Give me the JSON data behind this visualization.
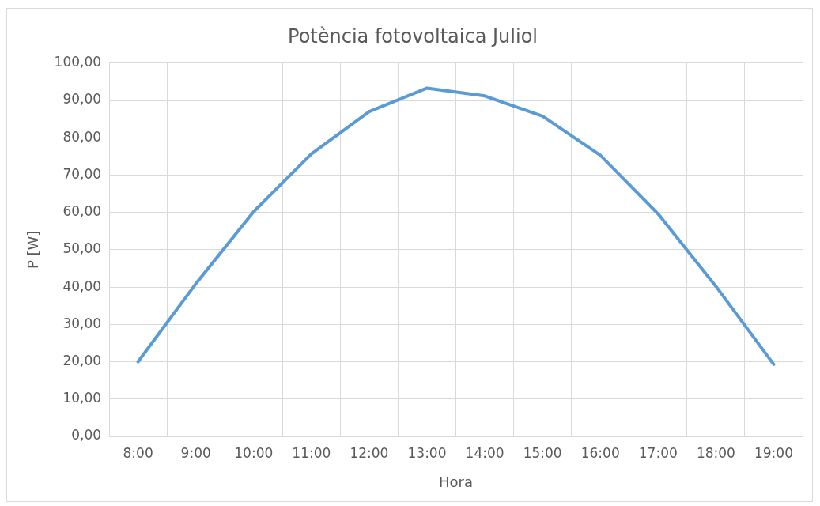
{
  "chart_data": {
    "type": "line",
    "title": "Potència fotovoltaica Juliol",
    "xlabel": "Hora",
    "ylabel": "P [W]",
    "categories": [
      "8:00",
      "9:00",
      "10:00",
      "11:00",
      "12:00",
      "13:00",
      "14:00",
      "15:00",
      "16:00",
      "17:00",
      "18:00",
      "19:00"
    ],
    "series": [
      {
        "color": "#5b9bd5",
        "values": [
          20.0,
          40.9,
          60.2,
          75.7,
          87.0,
          93.3,
          91.2,
          85.8,
          75.3,
          59.6,
          40.2,
          19.3
        ]
      }
    ],
    "ylim": [
      0,
      100
    ],
    "yticks": [
      {
        "value": 0,
        "label": "0,00"
      },
      {
        "value": 10,
        "label": "10,00"
      },
      {
        "value": 20,
        "label": "20,00"
      },
      {
        "value": 30,
        "label": "30,00"
      },
      {
        "value": 40,
        "label": "40,00"
      },
      {
        "value": 50,
        "label": "50,00"
      },
      {
        "value": 60,
        "label": "60,00"
      },
      {
        "value": 70,
        "label": "70,00"
      },
      {
        "value": 80,
        "label": "80,00"
      },
      {
        "value": 90,
        "label": "90,00"
      },
      {
        "value": 100,
        "label": "100,00"
      }
    ],
    "grid": true,
    "legend": false,
    "marker": "none",
    "line_style": "solid"
  }
}
